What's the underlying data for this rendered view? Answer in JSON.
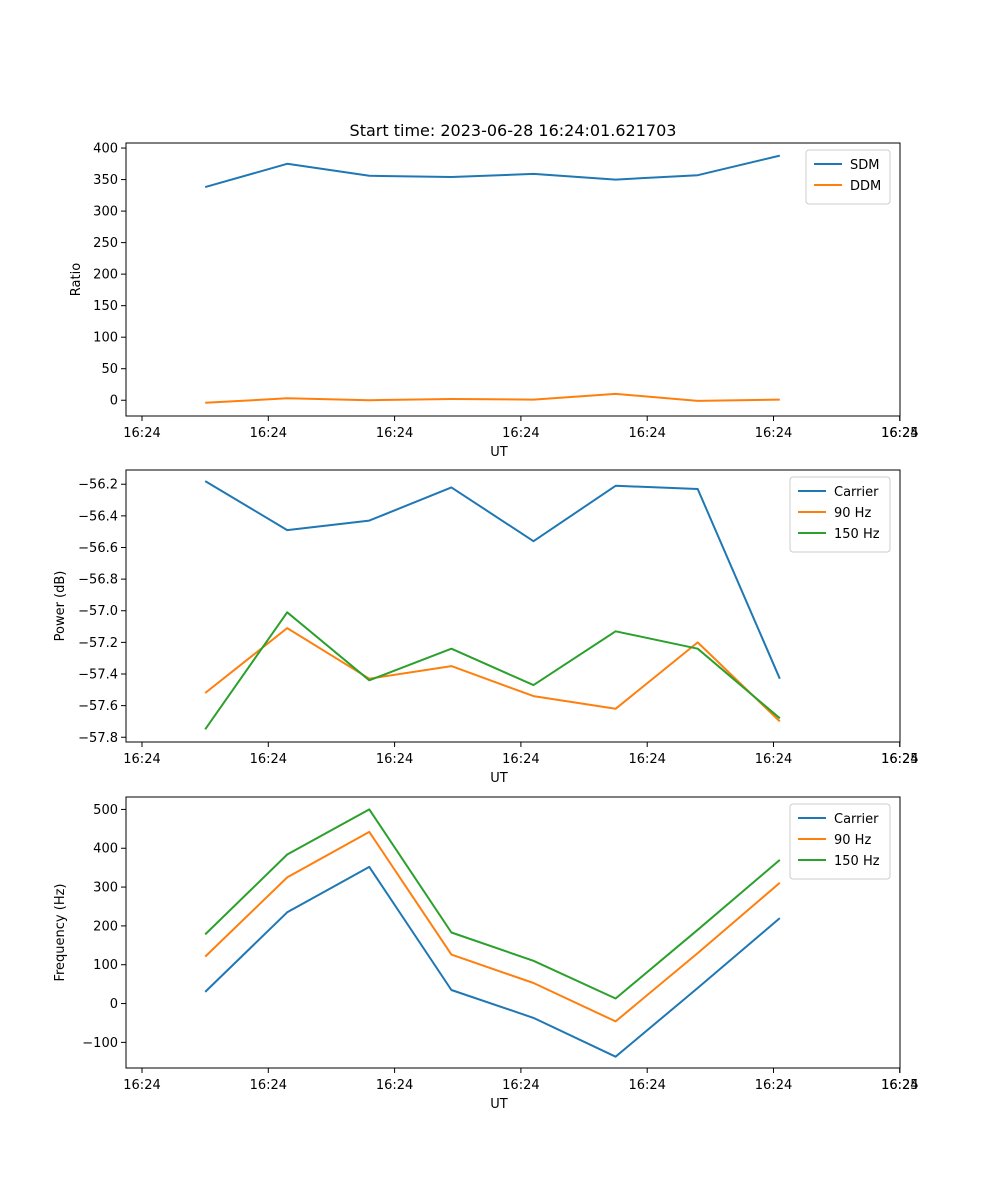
{
  "figure": {
    "title": "Start time: 2023-06-28 16:24:01.621703"
  },
  "chart_data": [
    {
      "type": "line",
      "xlabel": "UT",
      "ylabel": "Ratio",
      "x_tick_labels": [
        "16:24",
        "16:24",
        "16:24",
        "16:24",
        "16:24",
        "16:24",
        "16:24"
      ],
      "x_tick_positions": [
        0,
        1,
        2,
        3,
        4,
        5,
        6
      ],
      "x_end_tick_label": "16:25",
      "x": [
        0.5,
        1.15,
        1.8,
        2.45,
        3.1,
        3.75,
        4.4,
        5.05
      ],
      "ylim": [
        -25,
        408
      ],
      "yticks": [
        0,
        50,
        100,
        150,
        200,
        250,
        300,
        350,
        400
      ],
      "legend_position": "top-right",
      "series": [
        {
          "name": "SDM",
          "color": "#1f77b4",
          "values": [
            338,
            375,
            356,
            354,
            359,
            350,
            357,
            388
          ]
        },
        {
          "name": "DDM",
          "color": "#ff7f0e",
          "values": [
            -4,
            3,
            0,
            2,
            1,
            10,
            -1,
            1
          ]
        }
      ]
    },
    {
      "type": "line",
      "xlabel": "UT",
      "ylabel": "Power (dB)",
      "x_tick_labels": [
        "16:24",
        "16:24",
        "16:24",
        "16:24",
        "16:24",
        "16:24",
        "16:24"
      ],
      "x_tick_positions": [
        0,
        1,
        2,
        3,
        4,
        5,
        6
      ],
      "x_end_tick_label": "16:25",
      "x": [
        0.5,
        1.15,
        1.8,
        2.45,
        3.1,
        3.75,
        4.4,
        5.05
      ],
      "ylim": [
        -57.83,
        -56.11
      ],
      "yticks": [
        -57.8,
        -57.6,
        -57.4,
        -57.2,
        -57.0,
        -56.8,
        -56.6,
        -56.4,
        -56.2
      ],
      "ytick_labels": [
        "−57.8",
        "−57.6",
        "−57.4",
        "−57.2",
        "−57.0",
        "−56.8",
        "−56.6",
        "−56.4",
        "−56.2"
      ],
      "legend_position": "top-right",
      "series": [
        {
          "name": "Carrier",
          "color": "#1f77b4",
          "values": [
            -56.18,
            -56.49,
            -56.43,
            -56.22,
            -56.56,
            -56.21,
            -56.23,
            -57.43
          ]
        },
        {
          "name": "90 Hz",
          "color": "#ff7f0e",
          "values": [
            -57.52,
            -57.11,
            -57.43,
            -57.35,
            -57.54,
            -57.62,
            -57.2,
            -57.7
          ]
        },
        {
          "name": "150 Hz",
          "color": "#2ca02c",
          "values": [
            -57.75,
            -57.01,
            -57.44,
            -57.24,
            -57.47,
            -57.13,
            -57.24,
            -57.68
          ]
        }
      ]
    },
    {
      "type": "line",
      "xlabel": "UT",
      "ylabel": "Frequency (Hz)",
      "x_tick_labels": [
        "16:24",
        "16:24",
        "16:24",
        "16:24",
        "16:24",
        "16:24",
        "16:24"
      ],
      "x_tick_positions": [
        0,
        1,
        2,
        3,
        4,
        5,
        6
      ],
      "x_end_tick_label": "16:25",
      "x": [
        0.5,
        1.15,
        1.8,
        2.45,
        3.1,
        3.75,
        4.4,
        5.05
      ],
      "ylim": [
        -166,
        532
      ],
      "yticks": [
        -100,
        0,
        100,
        200,
        300,
        400,
        500
      ],
      "ytick_labels": [
        "−100",
        "0",
        "100",
        "200",
        "300",
        "400",
        "500"
      ],
      "legend_position": "top-right",
      "series": [
        {
          "name": "Carrier",
          "color": "#1f77b4",
          "values": [
            30,
            235,
            352,
            35,
            -37,
            -137,
            40,
            220
          ]
        },
        {
          "name": "90 Hz",
          "color": "#ff7f0e",
          "values": [
            121,
            325,
            442,
            126,
            53,
            -46,
            130,
            311
          ]
        },
        {
          "name": "150 Hz",
          "color": "#2ca02c",
          "values": [
            178,
            384,
            500,
            183,
            110,
            13,
            190,
            370
          ]
        }
      ]
    }
  ]
}
